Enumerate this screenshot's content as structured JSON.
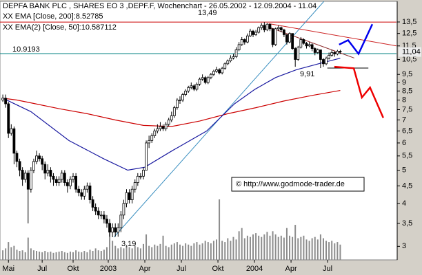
{
  "chart_data": {
    "type": "candlestick",
    "title": "DEPFA BANK PLC , SHARES EO 3 ,DEPF.F, Wochenchart - 26.05.2002 - 12.09.2004 - 11.04",
    "copyright": "© http://www.godmode-trader.de",
    "log_scale": true,
    "xlim": [
      -1,
      140
    ],
    "xticks": [
      {
        "value": 2,
        "label": "Mai"
      },
      {
        "value": 14,
        "label": "Jul"
      },
      {
        "value": 25,
        "label": "Okt"
      },
      {
        "value": 37.5,
        "label": "2003"
      },
      {
        "value": 50.5,
        "label": "Apr"
      },
      {
        "value": 63.5,
        "label": "Jul"
      },
      {
        "value": 76.5,
        "label": "Okt"
      },
      {
        "value": 89.5,
        "label": "2004"
      },
      {
        "value": 102.5,
        "label": "Apr"
      },
      {
        "value": 115.5,
        "label": "Jul"
      }
    ],
    "ylim": [
      2.74,
      15.5
    ],
    "yticks": [
      3,
      {
        "value": 3.5,
        "label": "3,5"
      },
      4,
      {
        "value": 4.5,
        "label": "4,5"
      },
      5,
      {
        "value": 5.5,
        "label": "5,5"
      },
      6,
      {
        "value": 6.5,
        "label": "6,5"
      },
      7,
      {
        "value": 7.5,
        "label": "7,5"
      },
      8,
      {
        "value": 8.5,
        "label": "8,5"
      },
      9,
      {
        "value": 9.5,
        "label": "9,5"
      },
      {
        "value": 10.5,
        "label": "10,5"
      },
      {
        "value": 11.5,
        "label": "11,5"
      },
      {
        "value": 12.5,
        "label": "12,5"
      },
      {
        "value": 13.5,
        "label": "13,5"
      }
    ],
    "last_price": {
      "value": 11.04,
      "label": "11,04"
    },
    "open": [
      8.0,
      8.1,
      7.8,
      6.4,
      6.6,
      5.6,
      5.3,
      5.0,
      4.7,
      4.9,
      4.4,
      5.0,
      5.3,
      5.5,
      5.4,
      5.2,
      4.9,
      5.0,
      4.8,
      4.7,
      4.6,
      4.7,
      4.9,
      4.6,
      4.5,
      4.7,
      4.8,
      4.4,
      4.3,
      4.2,
      4.4,
      4.5,
      4.1,
      3.9,
      3.8,
      3.7,
      3.7,
      3.6,
      3.5,
      3.3,
      3.4,
      3.3,
      3.4,
      3.7,
      4.0,
      4.3,
      4.1,
      4.4,
      4.6,
      4.8,
      4.8,
      5.0,
      6.0,
      6.1,
      6.3,
      6.5,
      6.6,
      6.7,
      6.6,
      6.8,
      7.0,
      7.2,
      7.6,
      8.0,
      8.0,
      8.3,
      8.5,
      8.7,
      8.8,
      8.6,
      8.9,
      9.2,
      9.3,
      9.0,
      9.3,
      9.5,
      9.7,
      9.8,
      9.6,
      9.9,
      10.2,
      10.4,
      10.6,
      10.7,
      11.2,
      11.6,
      12.0,
      11.8,
      12.3,
      12.7,
      12.4,
      12.6,
      13.0,
      13.2,
      12.8,
      13.3,
      12.9,
      11.6,
      12.9,
      13.0,
      12.8,
      12.4,
      11.8,
      12.5,
      11.3,
      10.5,
      11.4,
      12.0,
      11.7,
      11.5,
      11.6,
      11.3,
      11.0,
      11.2,
      10.5,
      10.2,
      10.6,
      10.8,
      11.0,
      10.9,
      11.1
    ],
    "high": [
      8.3,
      8.3,
      7.9,
      6.8,
      6.7,
      5.7,
      5.4,
      5.1,
      5.0,
      5.0,
      5.1,
      5.4,
      5.7,
      5.6,
      5.5,
      5.3,
      5.2,
      5.1,
      4.9,
      4.8,
      4.8,
      5.0,
      5.0,
      4.7,
      4.8,
      4.9,
      4.9,
      4.5,
      4.4,
      4.5,
      4.6,
      4.6,
      4.2,
      4.0,
      3.9,
      3.8,
      3.8,
      3.7,
      3.6,
      3.5,
      3.5,
      3.5,
      3.8,
      4.1,
      4.4,
      4.4,
      4.5,
      4.7,
      4.9,
      4.9,
      5.1,
      6.1,
      6.3,
      6.4,
      6.6,
      6.8,
      6.9,
      6.8,
      6.9,
      7.1,
      7.4,
      7.7,
      8.1,
      8.2,
      8.4,
      8.6,
      8.8,
      9.0,
      8.9,
      9.0,
      9.3,
      9.5,
      9.4,
      9.4,
      9.6,
      9.8,
      10.0,
      9.9,
      10.0,
      10.3,
      10.5,
      10.8,
      10.9,
      11.4,
      11.8,
      12.2,
      12.1,
      12.5,
      12.9,
      12.8,
      12.8,
      13.1,
      13.4,
      13.49,
      13.4,
      13.3,
      12.9,
      13.0,
      13.2,
      13.1,
      12.9,
      12.4,
      12.6,
      12.5,
      11.4,
      11.5,
      12.2,
      12.1,
      11.8,
      11.8,
      11.7,
      11.4,
      11.3,
      11.2,
      10.6,
      10.7,
      11.0,
      11.2,
      11.1,
      11.2,
      11.2
    ],
    "low": [
      7.9,
      7.6,
      6.2,
      6.3,
      5.2,
      5.1,
      4.8,
      4.5,
      4.6,
      3.5,
      4.3,
      4.9,
      5.2,
      5.3,
      5.0,
      4.7,
      4.8,
      4.6,
      4.5,
      4.5,
      4.5,
      4.6,
      4.5,
      4.3,
      4.4,
      4.6,
      4.3,
      4.2,
      4.1,
      4.1,
      4.3,
      4.0,
      3.8,
      3.7,
      3.6,
      3.6,
      3.5,
      3.4,
      3.2,
      3.19,
      3.2,
      3.2,
      3.3,
      3.6,
      3.9,
      4.0,
      4.0,
      4.3,
      4.5,
      4.7,
      4.7,
      5.0,
      5.8,
      6.0,
      6.2,
      6.4,
      6.5,
      6.5,
      6.5,
      6.7,
      6.9,
      7.1,
      7.5,
      7.8,
      7.9,
      8.2,
      8.4,
      8.6,
      8.5,
      8.5,
      8.8,
      9.1,
      8.9,
      8.9,
      9.2,
      9.4,
      9.6,
      9.5,
      9.5,
      9.8,
      10.1,
      10.3,
      10.5,
      10.6,
      11.1,
      11.5,
      11.6,
      11.7,
      12.2,
      12.2,
      12.3,
      12.5,
      12.8,
      12.6,
      12.7,
      12.7,
      11.4,
      11.5,
      12.7,
      12.6,
      12.2,
      11.6,
      11.7,
      11.2,
      10.0,
      10.4,
      11.3,
      11.6,
      11.3,
      11.4,
      11.1,
      10.8,
      10.9,
      9.91,
      10.0,
      10.1,
      10.5,
      10.7,
      10.7,
      10.8,
      10.9
    ],
    "close": [
      8.1,
      7.8,
      6.4,
      6.6,
      5.6,
      5.3,
      5.0,
      4.7,
      4.9,
      4.4,
      5.0,
      5.3,
      5.5,
      5.4,
      5.2,
      4.9,
      5.0,
      4.8,
      4.7,
      4.6,
      4.7,
      4.9,
      4.6,
      4.5,
      4.7,
      4.8,
      4.4,
      4.3,
      4.2,
      4.4,
      4.5,
      4.1,
      3.9,
      3.8,
      3.7,
      3.7,
      3.6,
      3.5,
      3.3,
      3.4,
      3.3,
      3.4,
      3.7,
      4.0,
      4.3,
      4.1,
      4.4,
      4.6,
      4.8,
      4.8,
      5.0,
      6.0,
      6.1,
      6.3,
      6.5,
      6.6,
      6.7,
      6.6,
      6.8,
      7.0,
      7.2,
      7.6,
      8.0,
      8.0,
      8.3,
      8.5,
      8.7,
      8.8,
      8.6,
      8.9,
      9.2,
      9.3,
      9.0,
      9.3,
      9.5,
      9.7,
      9.8,
      9.6,
      9.9,
      10.2,
      10.4,
      10.6,
      10.7,
      11.2,
      11.6,
      12.0,
      11.8,
      12.3,
      12.7,
      12.4,
      12.6,
      13.0,
      13.2,
      12.8,
      13.3,
      12.9,
      11.6,
      12.9,
      13.0,
      12.8,
      12.4,
      11.8,
      12.5,
      11.3,
      10.5,
      11.4,
      12.0,
      11.7,
      11.5,
      11.6,
      11.3,
      11.0,
      11.2,
      10.5,
      10.2,
      10.6,
      10.8,
      11.0,
      10.9,
      11.1,
      11.04
    ],
    "volume": [
      15,
      18,
      28,
      20,
      22,
      16,
      14,
      15,
      12,
      35,
      18,
      15,
      14,
      13,
      12,
      14,
      12,
      13,
      11,
      12,
      13,
      14,
      12,
      11,
      13,
      12,
      15,
      13,
      12,
      14,
      12,
      16,
      14,
      18,
      15,
      14,
      16,
      20,
      45,
      30,
      22,
      18,
      20,
      18,
      22,
      20,
      18,
      22,
      20,
      18,
      25,
      40,
      22,
      20,
      24,
      22,
      25,
      38,
      22,
      20,
      24,
      26,
      28,
      24,
      22,
      26,
      24,
      22,
      26,
      28,
      24,
      26,
      30,
      28,
      26,
      30,
      32,
      95,
      30,
      28,
      34,
      30,
      36,
      32,
      45,
      50,
      34,
      38,
      36,
      40,
      42,
      38,
      36,
      40,
      44,
      38,
      45,
      40,
      36,
      38,
      35,
      50,
      38,
      36,
      55,
      34,
      36,
      38,
      32,
      30,
      34,
      36,
      32,
      40,
      34,
      30,
      28,
      30,
      26,
      28,
      24
    ],
    "series": [
      {
        "name": "XX EMA [Close, 200]:8.52785",
        "color": "#cc0000",
        "x": [
          0,
          5,
          10,
          20,
          30,
          40,
          50,
          60,
          70,
          80,
          90,
          100,
          110,
          120
        ],
        "values": [
          8.1,
          8.0,
          7.85,
          7.55,
          7.3,
          7.0,
          6.75,
          6.7,
          6.95,
          7.3,
          7.6,
          7.95,
          8.25,
          8.53
        ]
      },
      {
        "name": "XX EMA(2) [Close, 50]:10.587112",
        "color": "#1a1aa0",
        "x": [
          0,
          10,
          23.5,
          35.8,
          44.4,
          50.5,
          60.3,
          72.5,
          82.4,
          89.7,
          97,
          104.4,
          114.2,
          120
        ],
        "values": [
          8.1,
          7.4,
          6.1,
          5.4,
          5.0,
          5.1,
          5.7,
          6.5,
          7.8,
          8.6,
          9.3,
          9.8,
          10.3,
          10.59
        ]
      }
    ],
    "lines": [
      {
        "color": "#3a8fc0",
        "x": [
          39.5,
          114.2
        ],
        "values": [
          3.19,
          15.5
        ]
      },
      {
        "color": "#cc2222",
        "x": [
          94.6,
          140
        ],
        "values": [
          13.35,
          11.5
        ]
      },
      {
        "color": "#8b2c2c",
        "x": [
          94,
          125
        ],
        "values": [
          13.1,
          10.6
        ]
      },
      {
        "color": "#000000",
        "x": [
          115.4,
          130
        ],
        "values": [
          9.91,
          9.91
        ]
      }
    ],
    "forecast": [
      {
        "color": "#0000ee",
        "x": [
          119.6,
          122.8,
          126.5,
          131.4
        ],
        "values": [
          11.6,
          11.95,
          10.9,
          13.3
        ]
      },
      {
        "color": "#ee0000",
        "x": [
          117.9,
          124.8,
          127.7,
          130.6,
          135.3
        ],
        "values": [
          10.0,
          9.9,
          8.14,
          8.7,
          7.1
        ]
      }
    ],
    "levels": [
      {
        "value": 13.49,
        "color": "#cc0000"
      },
      {
        "value": 10.9193,
        "label": "10.9193",
        "color": "#008080"
      }
    ],
    "annotations": [
      {
        "value": 13.49,
        "label": "13,49"
      },
      {
        "value": 9.91,
        "label": "9,91"
      },
      {
        "value": 3.19,
        "label": "3,19"
      }
    ]
  }
}
